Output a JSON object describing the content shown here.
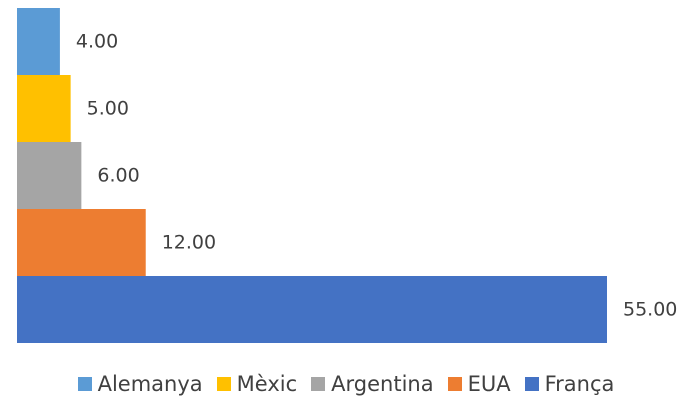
{
  "chart_data": {
    "type": "bar",
    "orientation": "horizontal",
    "stacked_layout": "adjacent",
    "categories": [
      "Alemanya",
      "Mèxic",
      "Argentina",
      "EUA",
      "França"
    ],
    "values": [
      4.0,
      5.0,
      6.0,
      12.0,
      55.0
    ],
    "data_labels": [
      "4.00",
      "5.00",
      "6.00",
      "12.00",
      "55.00"
    ],
    "colors": [
      "#5b9bd5",
      "#ffc000",
      "#a5a5a5",
      "#ed7d31",
      "#4472c4"
    ],
    "xlim": [
      0,
      55
    ],
    "grid": false,
    "legend_position": "bottom"
  }
}
